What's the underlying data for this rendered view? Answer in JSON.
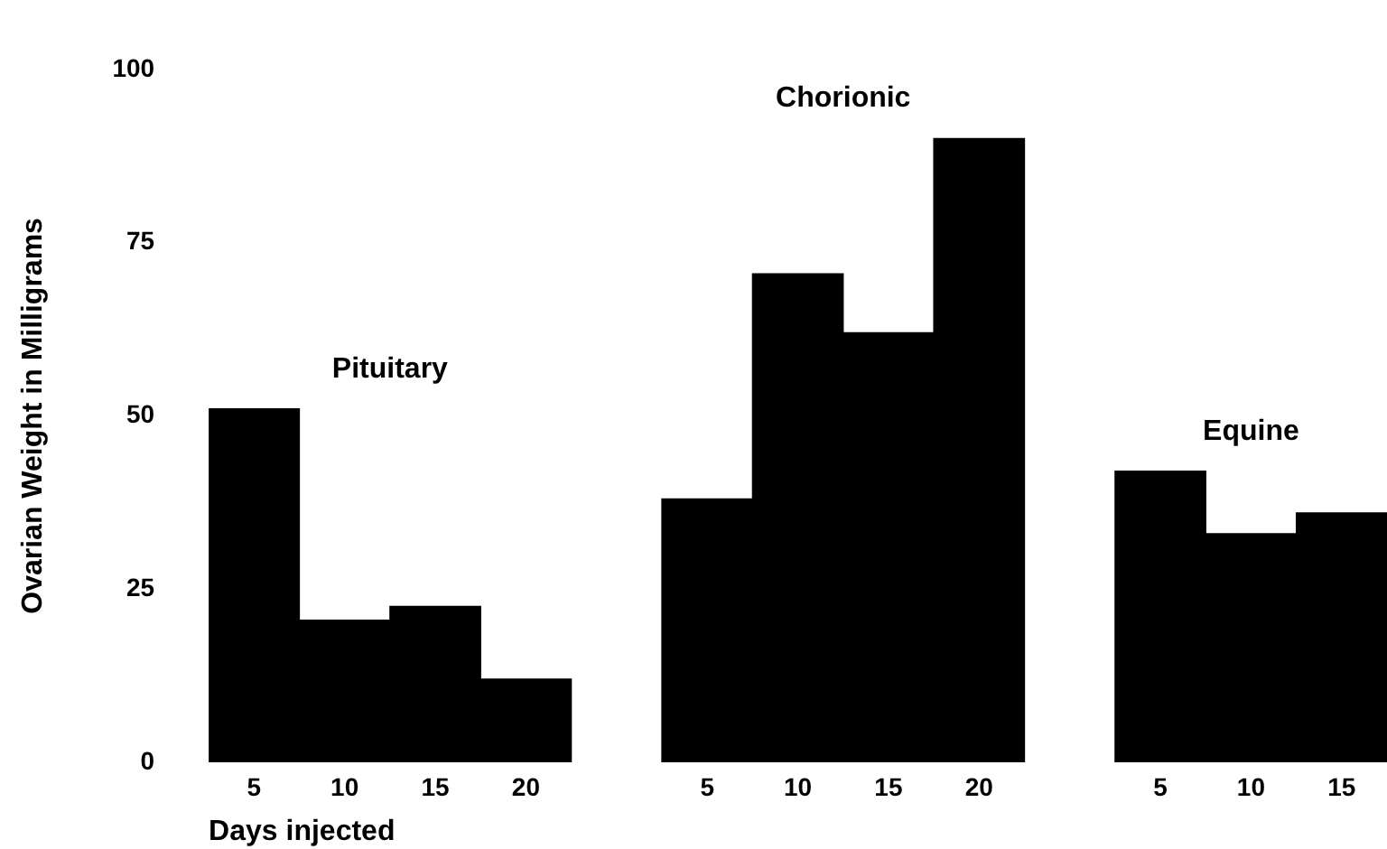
{
  "chart_data": {
    "type": "bar",
    "xlabel": "Days injected",
    "ylabel": "Ovarian Weight in Milligrams",
    "categories": [
      "5",
      "10",
      "15",
      "20",
      null,
      "5",
      "10",
      "15",
      "20",
      null,
      "5",
      "10",
      "15"
    ],
    "values": [
      51,
      20.5,
      22.5,
      12,
      null,
      38,
      70.5,
      62,
      90,
      null,
      42,
      33,
      36
    ],
    "color": "#000000",
    "ylim": [
      0,
      100
    ],
    "yticks": [
      0,
      25,
      50,
      75,
      100
    ],
    "grid": false,
    "legend": false,
    "annotations": [
      "Pituitary",
      "Chorionic",
      "Equine"
    ]
  }
}
